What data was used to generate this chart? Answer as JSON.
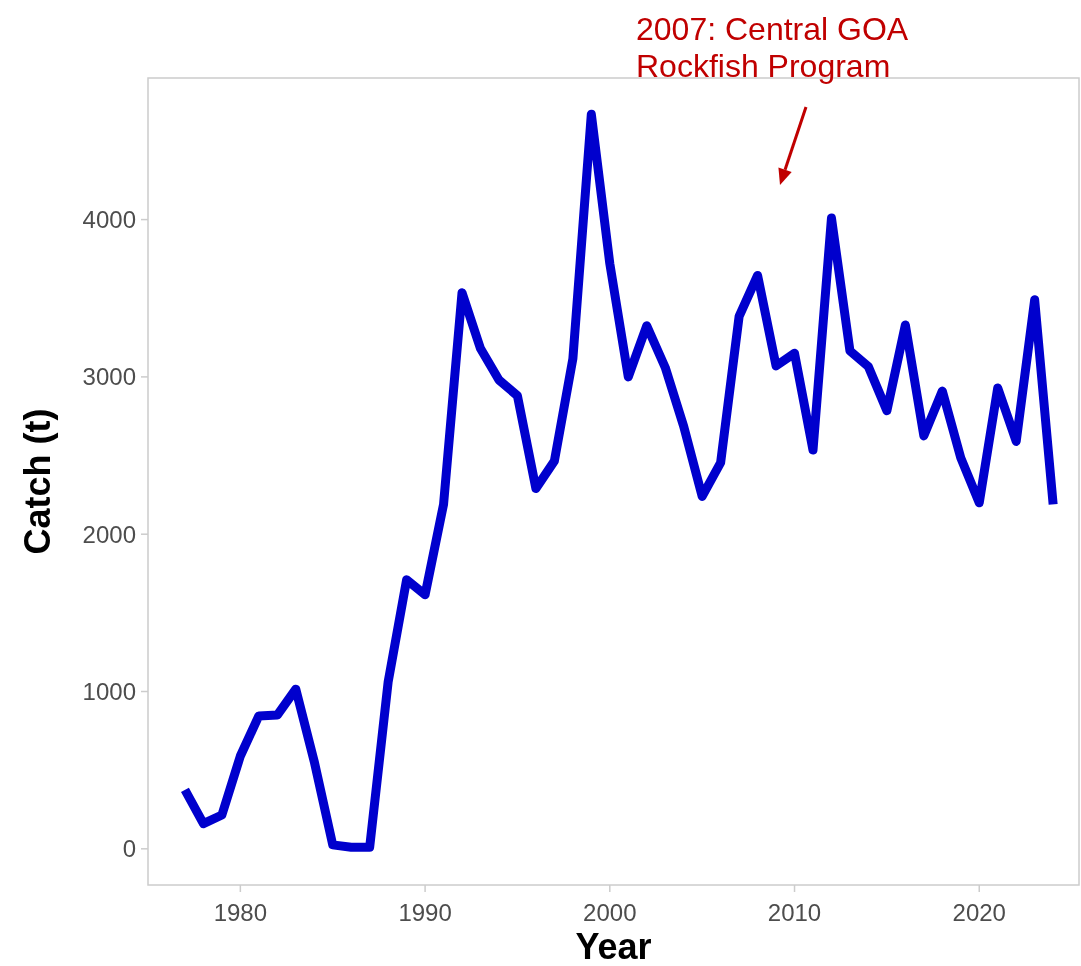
{
  "chart_data": {
    "type": "line",
    "xlabel": "Year",
    "ylabel": "Catch (t)",
    "x": [
      1977,
      1978,
      1979,
      1980,
      1981,
      1982,
      1983,
      1984,
      1985,
      1986,
      1987,
      1988,
      1989,
      1990,
      1991,
      1992,
      1993,
      1994,
      1995,
      1996,
      1997,
      1998,
      1999,
      2000,
      2001,
      2002,
      2003,
      2004,
      2005,
      2006,
      2007,
      2008,
      2009,
      2010,
      2011,
      2012,
      2013,
      2014,
      2015,
      2016,
      2017,
      2018,
      2019,
      2020,
      2021,
      2022,
      2023,
      2024
    ],
    "series": [
      {
        "color": "#0000cd",
        "values": [
          375,
          160,
          215,
          590,
          845,
          850,
          1015,
          555,
          25,
          10,
          10,
          1060,
          1710,
          1615,
          2190,
          3535,
          3180,
          2980,
          2880,
          2290,
          2465,
          3115,
          4670,
          3720,
          3000,
          3325,
          3060,
          2685,
          2240,
          2455,
          3385,
          3645,
          3070,
          3150,
          2535,
          4010,
          3165,
          3065,
          2785,
          3330,
          2625,
          2910,
          2485,
          2200,
          2930,
          2590,
          3490,
          2190
        ]
      }
    ],
    "xlim": [
      1975,
      2025.4
    ],
    "ylim": [
      -230,
      4900
    ],
    "xticks": [
      1980,
      1990,
      2000,
      2010,
      2020
    ],
    "yticks": [
      0,
      1000,
      2000,
      3000,
      4000
    ],
    "annotations": [
      "2007: Central GOA Rockfish Program"
    ],
    "grid": false,
    "line_style": "solid",
    "marker": "none"
  }
}
